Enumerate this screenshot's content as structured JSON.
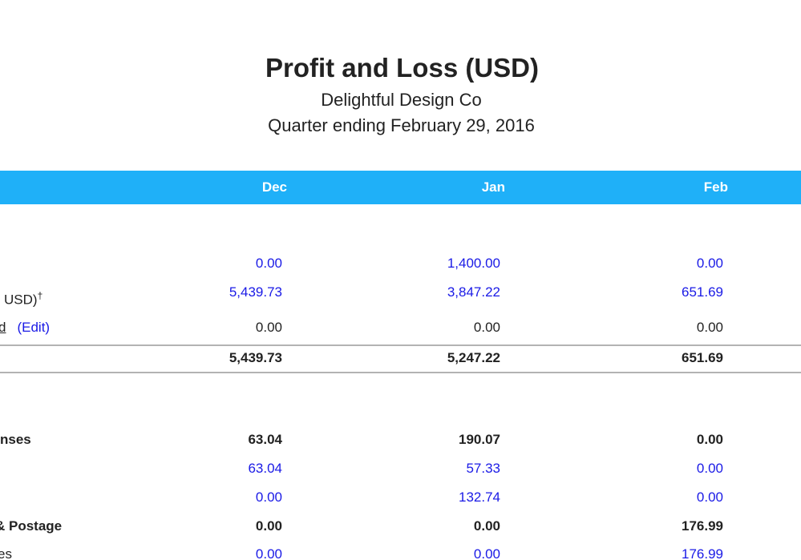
{
  "report": {
    "title": "Profit and Loss (USD)",
    "company": "Delightful Design Co",
    "period": "Quarter ending February 29, 2016"
  },
  "columns": {
    "dec": "Dec",
    "jan": "Jan",
    "feb": "Feb"
  },
  "rows": [
    {
      "label": "",
      "dec": "0.00",
      "jan": "1,400.00",
      "feb": "0.00"
    },
    {
      "label": "USD)",
      "dagger": "†",
      "dec": "5,439.73",
      "jan": "3,847.22",
      "feb": "651.69"
    },
    {
      "label": "d",
      "edit": "(Edit)",
      "dec": "0.00",
      "jan": "0.00",
      "feb": "0.00"
    },
    {
      "label": "",
      "dec": "5,439.73",
      "jan": "5,247.22",
      "feb": "651.69"
    },
    {
      "label": "nses",
      "dec": "63.04",
      "jan": "190.07",
      "feb": "0.00"
    },
    {
      "label": "",
      "dec": "63.04",
      "jan": "57.33",
      "feb": "0.00"
    },
    {
      "label": "",
      "dec": "0.00",
      "jan": "132.74",
      "feb": "0.00"
    },
    {
      "label": "& Postage",
      "dec": "0.00",
      "jan": "0.00",
      "feb": "176.99"
    },
    {
      "label": "es",
      "dec": "0.00",
      "jan": "0.00",
      "feb": "176.99"
    }
  ],
  "colors": {
    "header_bar": "#1fb0f8",
    "link": "#1a1ae6",
    "rule": "#b3b3b3"
  }
}
